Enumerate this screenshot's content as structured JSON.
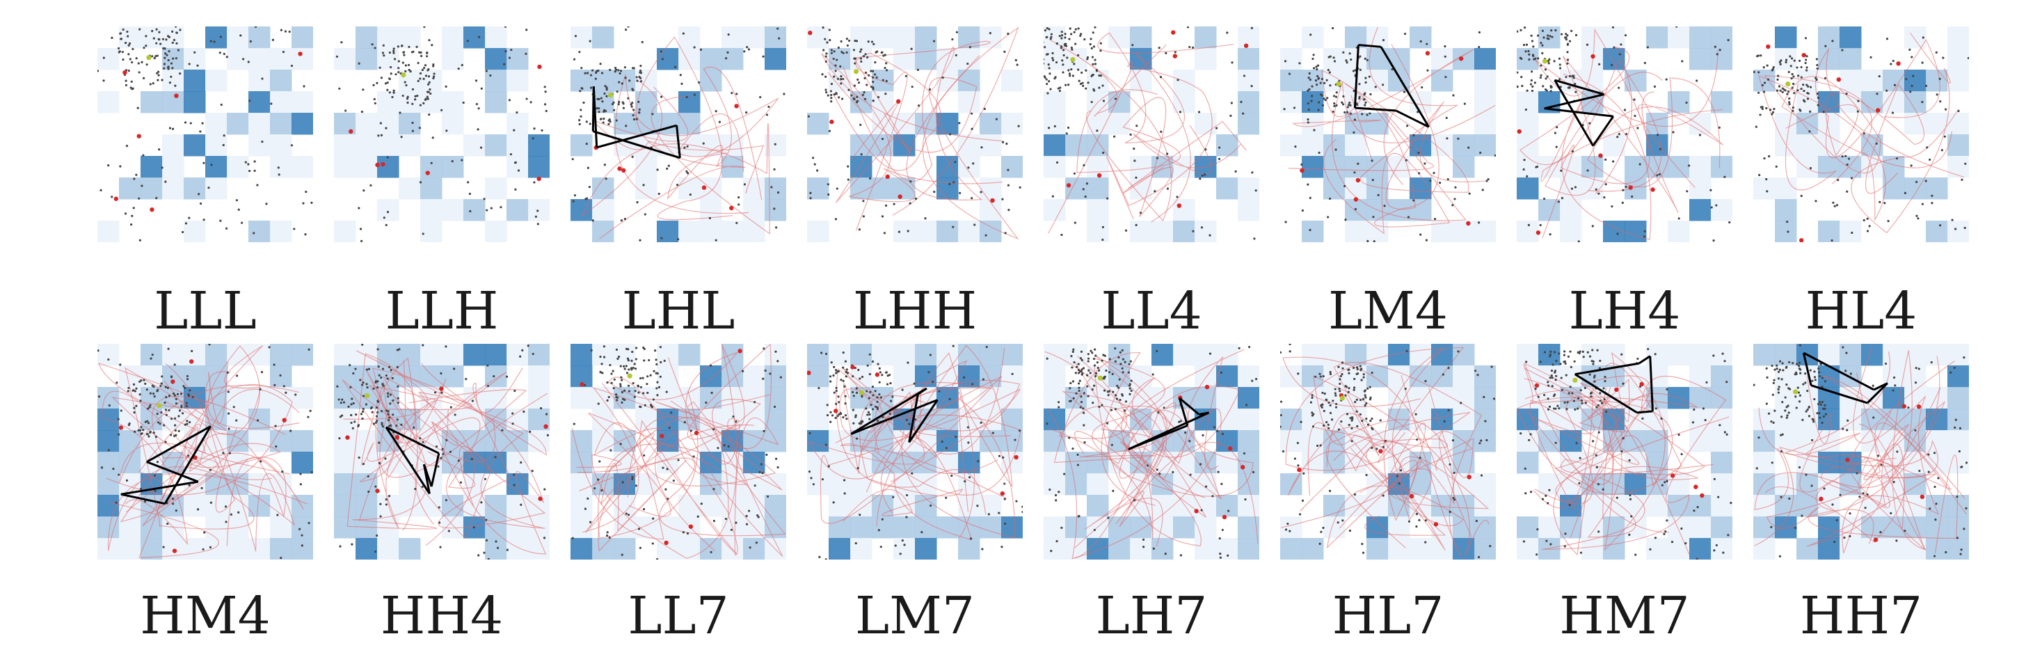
{
  "figure": {
    "panels": [
      {
        "label": "LLL"
      },
      {
        "label": "LLH"
      },
      {
        "label": "LHL"
      },
      {
        "label": "LHH"
      },
      {
        "label": "LL4"
      },
      {
        "label": "LM4"
      },
      {
        "label": "LH4"
      },
      {
        "label": "HL4"
      },
      {
        "label": "HM4"
      },
      {
        "label": "HH4"
      },
      {
        "label": "LL7"
      },
      {
        "label": "LM7"
      },
      {
        "label": "LH7"
      },
      {
        "label": "HL7"
      },
      {
        "label": "HM7"
      },
      {
        "label": "HH7"
      }
    ],
    "colors": {
      "heat_light": "#eaf1f9",
      "heat_mid": "#a9c8e4",
      "heat_dark": "#2f7ab9",
      "points": "#444444",
      "trails": "#e06666",
      "markers": "#d62728",
      "highlight": "#b5c730",
      "graph_edges": "#000000"
    }
  }
}
